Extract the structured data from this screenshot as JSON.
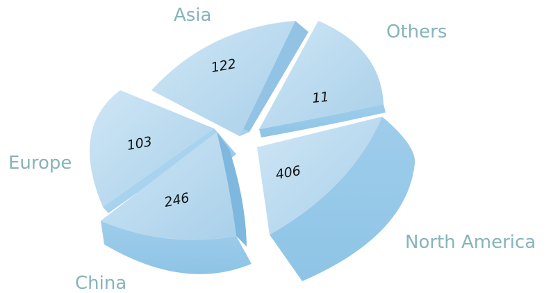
{
  "chart_data": {
    "type": "pie",
    "title": "",
    "legend": "none",
    "slices": [
      {
        "label": "Asia",
        "value": 122
      },
      {
        "label": "Others",
        "value": 11
      },
      {
        "label": "North America",
        "value": 406
      },
      {
        "label": "China",
        "value": 246
      },
      {
        "label": "Europe",
        "value": 103
      }
    ],
    "colors": {
      "top": "#b8d8ee",
      "top_light": "#cfe6f5",
      "side": "#92c7e8",
      "side_dark": "#7fb8de",
      "label": "#86b4ba",
      "value_text": "#111111"
    }
  }
}
